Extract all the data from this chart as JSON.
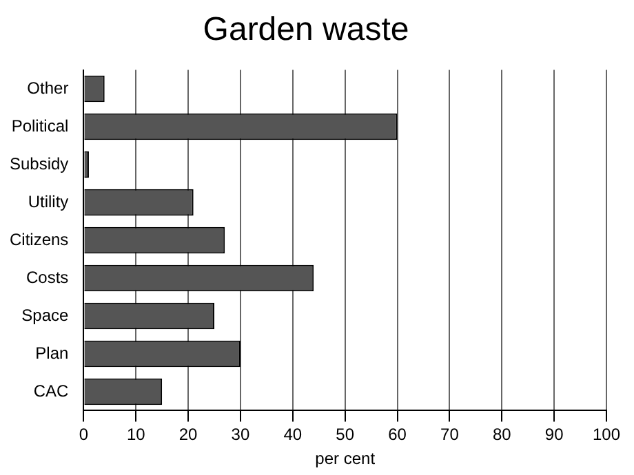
{
  "chart_data": {
    "type": "bar",
    "orientation": "horizontal",
    "title": "Garden waste",
    "xlabel": "per cent",
    "categories": [
      "Other",
      "Political",
      "Subsidy",
      "Utility",
      "Citizens",
      "Costs",
      "Space",
      "Plan",
      "CAC"
    ],
    "values": [
      4,
      60,
      1,
      21,
      27,
      44,
      25,
      30,
      15
    ],
    "color": "#555555",
    "xlim": [
      0,
      100
    ],
    "xticks": [
      0,
      10,
      20,
      30,
      40,
      50,
      60,
      70,
      80,
      90,
      100
    ],
    "grid": "x",
    "legend": false
  }
}
